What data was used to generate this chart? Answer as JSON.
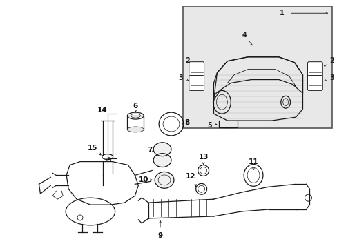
{
  "bg_color": "#ffffff",
  "inset_bg": "#e8e8e8",
  "line_color": "#1a1a1a",
  "figure_size": [
    4.89,
    3.6
  ],
  "dpi": 100
}
